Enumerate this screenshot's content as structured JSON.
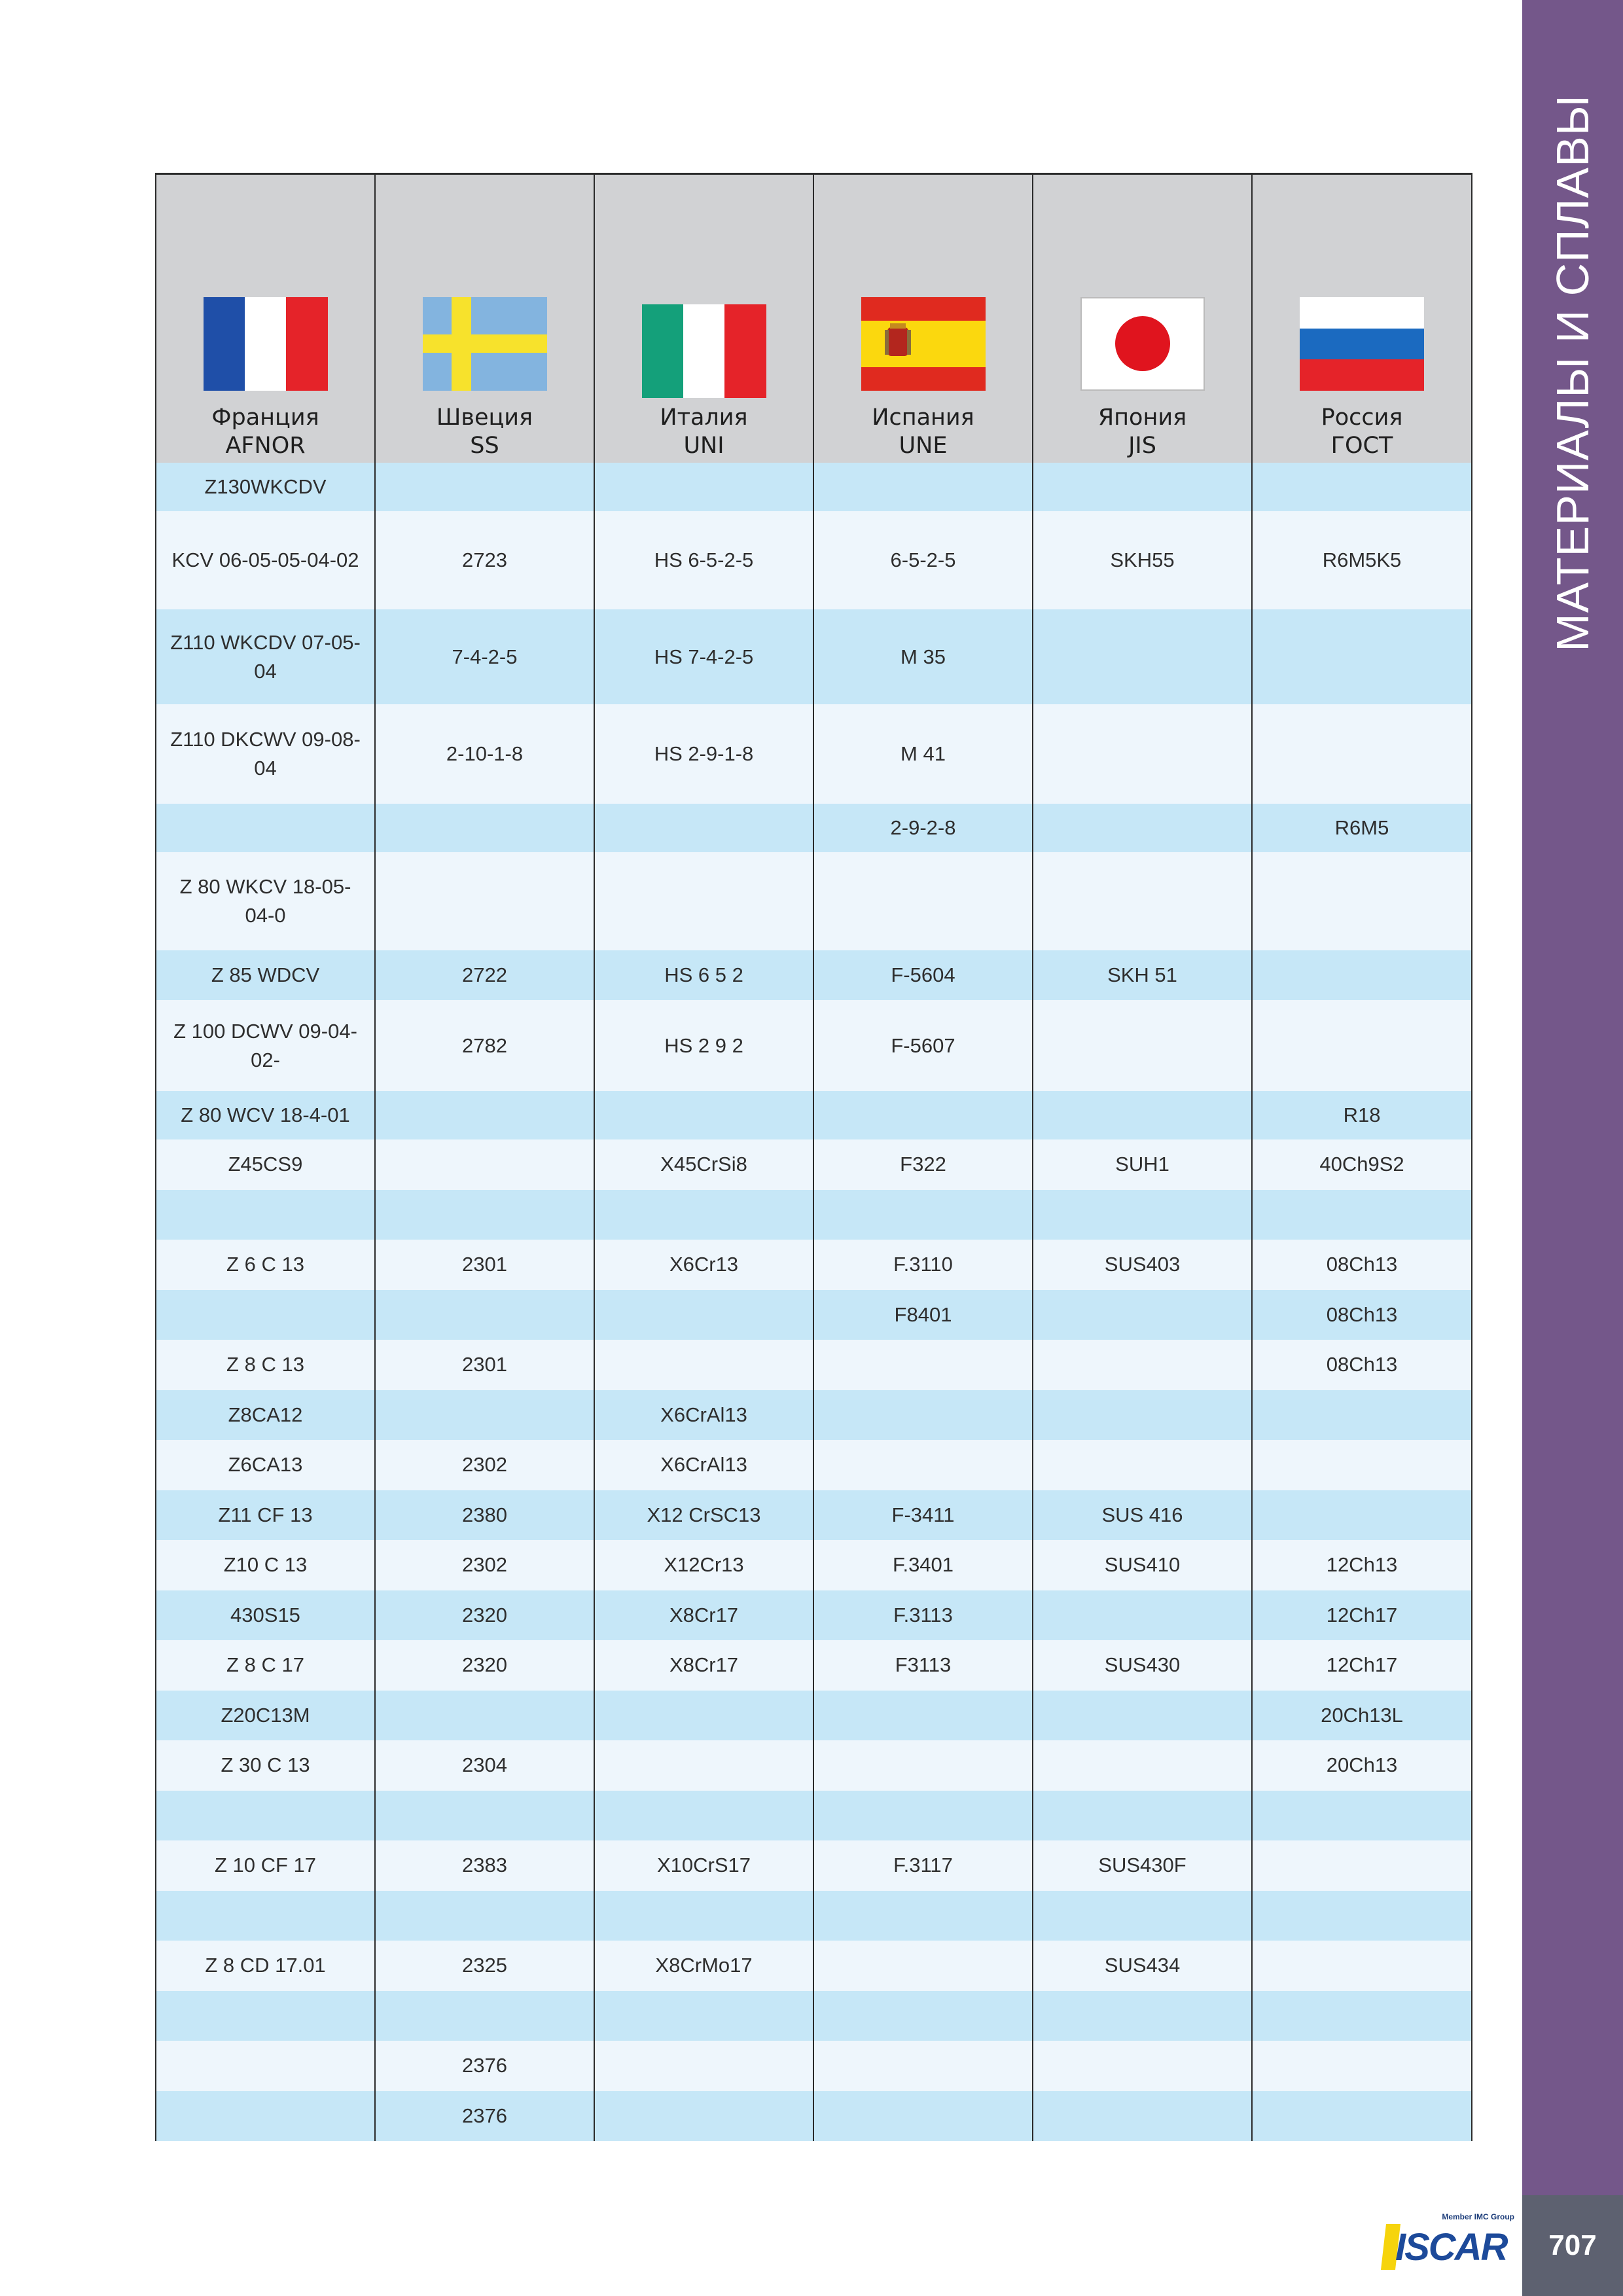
{
  "table": {
    "header": [
      {
        "country": "Франция",
        "standard": "AFNOR"
      },
      {
        "country": "Швеция",
        "standard": "SS"
      },
      {
        "country": "Италия",
        "standard": "UNI"
      },
      {
        "country": "Испания",
        "standard": "UNE"
      },
      {
        "country": "Япония",
        "standard": "JIS"
      },
      {
        "country": "Россия",
        "standard": "ГОСТ"
      }
    ],
    "rows": [
      [
        "Z130WKCDV",
        null,
        null,
        null,
        null,
        null
      ],
      [
        "KCV 06-05-05-04-02",
        "2723",
        "HS 6-5-2-5",
        "6-5-2-5",
        "SKH55",
        "R6M5K5"
      ],
      [
        "Z110 WKCDV 07-05-04",
        "7-4-2-5",
        "HS 7-4-2-5",
        "M 35",
        null,
        null
      ],
      [
        "Z110 DKCWV 09-08-04",
        "2-10-1-8",
        "HS 2-9-1-8",
        "M 41",
        null,
        null
      ],
      [
        null,
        null,
        null,
        "2-9-2-8",
        null,
        "R6M5"
      ],
      [
        "Z 80 WKCV 18-05-04-0",
        null,
        null,
        null,
        null,
        null
      ],
      [
        "Z 85 WDCV",
        "2722",
        "HS 6 5 2",
        "F-5604",
        "SKH 51",
        null
      ],
      [
        "Z 100 DCWV 09-04-02-",
        "2782",
        "HS 2 9 2",
        "F-5607",
        null,
        null
      ],
      [
        "Z 80 WCV 18-4-01",
        null,
        null,
        null,
        null,
        "R18"
      ],
      [
        "Z45CS9",
        null,
        "X45CrSi8",
        "F322",
        "SUH1",
        "40Ch9S2"
      ],
      [
        null,
        null,
        null,
        null,
        null,
        null
      ],
      [
        "Z 6 C 13",
        "2301",
        "X6Cr13",
        "F.3110",
        "SUS403",
        "08Ch13"
      ],
      [
        null,
        null,
        null,
        "F8401",
        null,
        "08Ch13"
      ],
      [
        "Z 8 C 13",
        "2301",
        null,
        null,
        null,
        "08Ch13"
      ],
      [
        "Z8CA12",
        null,
        "X6CrAl13",
        null,
        null,
        null
      ],
      [
        "Z6CA13",
        "2302",
        "X6CrAl13",
        null,
        null,
        null
      ],
      [
        "Z11 CF 13",
        "2380",
        "X12 CrSC13",
        "F-3411",
        "SUS 416",
        null
      ],
      [
        "Z10 C 13",
        "2302",
        "X12Cr13",
        "F.3401",
        "SUS410",
        "12Ch13"
      ],
      [
        "430S15",
        "2320",
        "X8Cr17",
        "F.3113",
        null,
        "12Ch17"
      ],
      [
        "Z 8 C 17",
        "2320",
        "X8Cr17",
        "F3113",
        "SUS430",
        "12Ch17"
      ],
      [
        "Z20C13M",
        null,
        null,
        null,
        null,
        "20Ch13L"
      ],
      [
        "Z 30 C 13",
        "2304",
        null,
        null,
        null,
        "20Ch13"
      ],
      [
        null,
        null,
        null,
        null,
        null,
        null
      ],
      [
        "Z 10 CF 17",
        "2383",
        "X10CrS17",
        "F.3117",
        "SUS430F",
        null
      ],
      [
        null,
        null,
        null,
        null,
        null,
        null
      ],
      [
        "Z 8 CD 17.01",
        "2325",
        "X8CrMo17",
        null,
        "SUS434",
        null
      ],
      [
        null,
        null,
        null,
        null,
        null,
        null
      ],
      [
        null,
        "2376",
        null,
        null,
        null,
        null
      ],
      [
        null,
        "2376",
        null,
        null,
        null,
        null
      ]
    ]
  },
  "sidebar": {
    "title": "МАТЕРИАЛЫ И СПЛАВЫ"
  },
  "footer": {
    "page_number": "707",
    "member": "Member IMC Group",
    "brand": "ISCAR"
  }
}
